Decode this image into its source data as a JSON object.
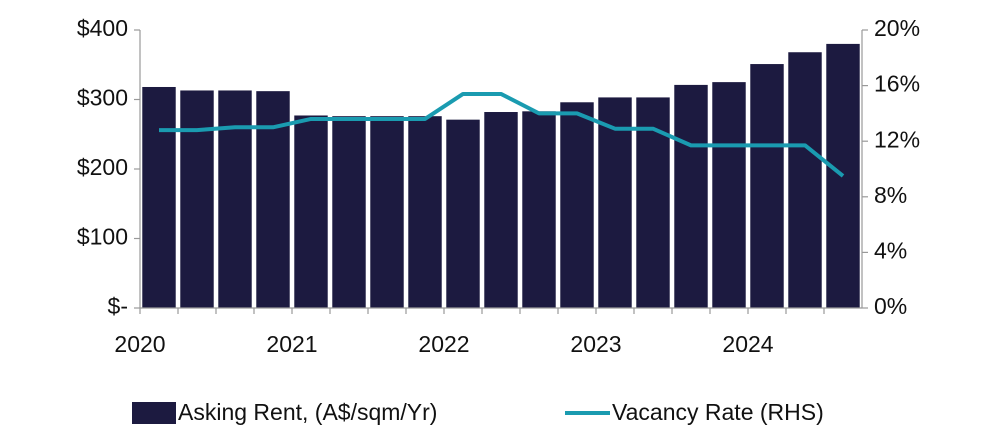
{
  "chart_data": {
    "type": "bar-line",
    "categories": [
      "2020",
      null,
      null,
      null,
      "2021",
      null,
      null,
      null,
      "2022",
      null,
      null,
      null,
      "2023",
      null,
      null,
      null,
      "2024",
      null,
      null
    ],
    "series": [
      {
        "name": "Asking Rent, (A$/sqm/Yr)",
        "type": "bar",
        "color": "#1c1a40",
        "values": [
          318,
          313,
          313,
          312,
          277,
          276,
          276,
          276,
          271,
          282,
          283,
          296,
          303,
          303,
          321,
          325,
          351,
          368,
          380
        ]
      },
      {
        "name": "Vacancy Rate (RHS)",
        "type": "line",
        "axis": "y2",
        "color": "#1a9bb0",
        "values": [
          12.8,
          12.8,
          13.0,
          13.0,
          13.6,
          13.6,
          13.6,
          13.6,
          15.4,
          15.4,
          14.0,
          14.0,
          12.9,
          12.9,
          11.7,
          11.7,
          11.7,
          11.7,
          9.5
        ]
      }
    ],
    "ylim": [
      0,
      400
    ],
    "yticks": [
      {
        "value": 0,
        "label": "$-"
      },
      {
        "value": 100,
        "label": "$100"
      },
      {
        "value": 200,
        "label": "$200"
      },
      {
        "value": 300,
        "label": "$300"
      },
      {
        "value": 400,
        "label": "$400"
      }
    ],
    "y2lim": [
      0,
      20
    ],
    "y2ticks": [
      {
        "value": 0,
        "label": "0%"
      },
      {
        "value": 4,
        "label": "4%"
      },
      {
        "value": 8,
        "label": "8%"
      },
      {
        "value": 12,
        "label": "12%"
      },
      {
        "value": 16,
        "label": "16%"
      },
      {
        "value": 20,
        "label": "20%"
      }
    ],
    "legend": "bottom"
  }
}
